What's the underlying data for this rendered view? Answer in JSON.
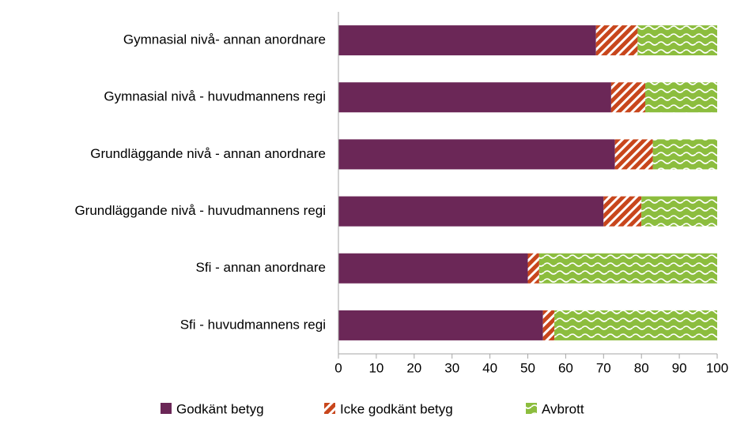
{
  "chart_data": {
    "type": "stacked-bar-horizontal",
    "categories": [
      "Gymnasial nivå- annan anordnare",
      "Gymnasial nivå - huvudmannens regi",
      "Grundläggande nivå - annan anordnare",
      "Grundläggande nivå - huvudmannens regi",
      "Sfi - annan anordnare",
      "Sfi - huvudmannens regi"
    ],
    "series": [
      {
        "name": "Godkänt betyg",
        "color": "#6b2757",
        "values": [
          68,
          72,
          73,
          70,
          50,
          54
        ]
      },
      {
        "name": "Icke godkänt betyg",
        "color": "#c8461c",
        "values": [
          11,
          9,
          10,
          10,
          3,
          3
        ]
      },
      {
        "name": "Avbrott",
        "color": "#8cbd3e",
        "values": [
          21,
          19,
          17,
          20,
          47,
          43
        ]
      }
    ],
    "xlim": [
      0,
      100
    ],
    "xticks": [
      0,
      10,
      20,
      30,
      40,
      50,
      60,
      70,
      80,
      90,
      100
    ],
    "legend": "bottom"
  }
}
